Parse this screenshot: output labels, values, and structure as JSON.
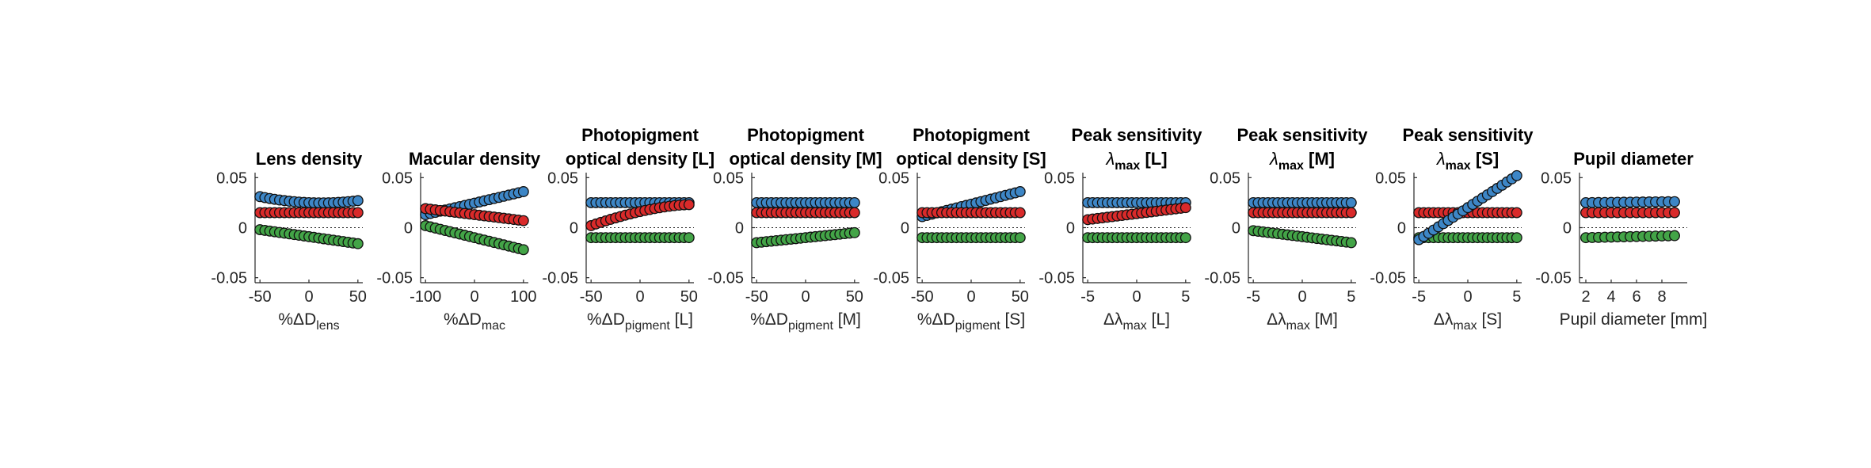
{
  "colors": {
    "blue": "#3d86c6",
    "red": "#d92a2a",
    "green": "#43a447"
  },
  "chart_data": [
    {
      "type": "scatter",
      "title": [
        "Lens density"
      ],
      "xlabel": {
        "pre": "%ΔD",
        "sub": "lens",
        "post": ""
      },
      "xlim": [
        -55,
        55
      ],
      "ylim": [
        -0.055,
        0.055
      ],
      "xticks": [
        -50,
        0,
        50
      ],
      "xticklabels": [
        "-50",
        "0",
        "50"
      ],
      "yticks": [
        -0.05,
        0,
        0.05
      ],
      "yticklabels": [
        "-0.05",
        "0",
        "0.05"
      ],
      "x": [
        -50,
        -45,
        -40,
        -35,
        -30,
        -25,
        -20,
        -15,
        -10,
        -5,
        0,
        5,
        10,
        15,
        20,
        25,
        30,
        35,
        40,
        45,
        50
      ],
      "series": [
        {
          "color": "blue",
          "start": 0.031,
          "end": 0.027,
          "mid": 0.025
        },
        {
          "color": "red",
          "start": 0.015,
          "end": 0.015
        },
        {
          "color": "green",
          "start": -0.002,
          "end": -0.016
        }
      ]
    },
    {
      "type": "scatter",
      "title": [
        "Macular density"
      ],
      "xlabel": {
        "pre": "%ΔD",
        "sub": "mac",
        "post": ""
      },
      "xlim": [
        -110,
        110
      ],
      "ylim": [
        -0.055,
        0.055
      ],
      "xticks": [
        -100,
        0,
        100
      ],
      "xticklabels": [
        "-100",
        "0",
        "100"
      ],
      "yticks": [
        -0.05,
        0,
        0.05
      ],
      "yticklabels": [
        "-0.05",
        "0",
        "0.05"
      ],
      "x": [
        -100,
        -90,
        -80,
        -70,
        -60,
        -50,
        -40,
        -30,
        -20,
        -10,
        0,
        10,
        20,
        30,
        40,
        50,
        60,
        70,
        80,
        90,
        100
      ],
      "series": [
        {
          "color": "blue",
          "start": 0.013,
          "end": 0.036
        },
        {
          "color": "red",
          "start": 0.019,
          "end": 0.007
        },
        {
          "color": "green",
          "start": 0.002,
          "end": -0.022
        }
      ]
    },
    {
      "type": "scatter",
      "title": [
        "Photopigment",
        "optical density [L]"
      ],
      "xlabel": {
        "pre": "%ΔD",
        "sub": "pigment",
        "post": " [L]"
      },
      "xlim": [
        -55,
        55
      ],
      "ylim": [
        -0.055,
        0.055
      ],
      "xticks": [
        -50,
        0,
        50
      ],
      "xticklabels": [
        "-50",
        "0",
        "50"
      ],
      "yticks": [
        -0.05,
        0,
        0.05
      ],
      "yticklabels": [
        "-0.05",
        "0",
        "0.05"
      ],
      "x": [
        -50,
        -45,
        -40,
        -35,
        -30,
        -25,
        -20,
        -15,
        -10,
        -5,
        0,
        5,
        10,
        15,
        20,
        25,
        30,
        35,
        40,
        45,
        50
      ],
      "series": [
        {
          "color": "blue",
          "start": 0.025,
          "end": 0.025
        },
        {
          "color": "red",
          "start": 0.002,
          "end": 0.023,
          "curve": "concave"
        },
        {
          "color": "green",
          "start": -0.01,
          "end": -0.01
        }
      ]
    },
    {
      "type": "scatter",
      "title": [
        "Photopigment",
        "optical density [M]"
      ],
      "xlabel": {
        "pre": "%ΔD",
        "sub": "pigment",
        "post": " [M]"
      },
      "xlim": [
        -55,
        55
      ],
      "ylim": [
        -0.055,
        0.055
      ],
      "xticks": [
        -50,
        0,
        50
      ],
      "xticklabels": [
        "-50",
        "0",
        "50"
      ],
      "yticks": [
        -0.05,
        0,
        0.05
      ],
      "yticklabels": [
        "-0.05",
        "0",
        "0.05"
      ],
      "x": [
        -50,
        -45,
        -40,
        -35,
        -30,
        -25,
        -20,
        -15,
        -10,
        -5,
        0,
        5,
        10,
        15,
        20,
        25,
        30,
        35,
        40,
        45,
        50
      ],
      "series": [
        {
          "color": "blue",
          "start": 0.025,
          "end": 0.025
        },
        {
          "color": "red",
          "start": 0.015,
          "end": 0.015
        },
        {
          "color": "green",
          "start": -0.015,
          "end": -0.005
        }
      ]
    },
    {
      "type": "scatter",
      "title": [
        "Photopigment",
        "optical density [S]"
      ],
      "xlabel": {
        "pre": "%ΔD",
        "sub": "pigment",
        "post": " [S]"
      },
      "xlim": [
        -55,
        55
      ],
      "ylim": [
        -0.055,
        0.055
      ],
      "xticks": [
        -50,
        0,
        50
      ],
      "xticklabels": [
        "-50",
        "0",
        "50"
      ],
      "yticks": [
        -0.05,
        0,
        0.05
      ],
      "yticklabels": [
        "-0.05",
        "0",
        "0.05"
      ],
      "x": [
        -50,
        -45,
        -40,
        -35,
        -30,
        -25,
        -20,
        -15,
        -10,
        -5,
        0,
        5,
        10,
        15,
        20,
        25,
        30,
        35,
        40,
        45,
        50
      ],
      "series": [
        {
          "color": "blue",
          "start": 0.011,
          "end": 0.036
        },
        {
          "color": "red",
          "start": 0.015,
          "end": 0.015
        },
        {
          "color": "green",
          "start": -0.01,
          "end": -0.01
        }
      ]
    },
    {
      "type": "scatter",
      "title": [
        "Peak sensitivity",
        "λmax [L]"
      ],
      "title_sub": "max",
      "xlabel": {
        "pre": "Δλ",
        "sub": "max",
        "post": " [L]"
      },
      "xlim": [
        -5.5,
        5.5
      ],
      "ylim": [
        -0.055,
        0.055
      ],
      "xticks": [
        -5,
        0,
        5
      ],
      "xticklabels": [
        "-5",
        "0",
        "5"
      ],
      "yticks": [
        -0.05,
        0,
        0.05
      ],
      "yticklabels": [
        "-0.05",
        "0",
        "0.05"
      ],
      "x": [
        -5,
        -4.5,
        -4,
        -3.5,
        -3,
        -2.5,
        -2,
        -1.5,
        -1,
        -0.5,
        0,
        0.5,
        1,
        1.5,
        2,
        2.5,
        3,
        3.5,
        4,
        4.5,
        5
      ],
      "series": [
        {
          "color": "blue",
          "start": 0.025,
          "end": 0.025
        },
        {
          "color": "red",
          "start": 0.008,
          "end": 0.02
        },
        {
          "color": "green",
          "start": -0.01,
          "end": -0.01
        }
      ]
    },
    {
      "type": "scatter",
      "title": [
        "Peak sensitivity",
        "λmax [M]"
      ],
      "title_sub": "max",
      "xlabel": {
        "pre": "Δλ",
        "sub": "max",
        "post": " [M]"
      },
      "xlim": [
        -5.5,
        5.5
      ],
      "ylim": [
        -0.055,
        0.055
      ],
      "xticks": [
        -5,
        0,
        5
      ],
      "xticklabels": [
        "-5",
        "0",
        "5"
      ],
      "yticks": [
        -0.05,
        0,
        0.05
      ],
      "yticklabels": [
        "-0.05",
        "0",
        "0.05"
      ],
      "x": [
        -5,
        -4.5,
        -4,
        -3.5,
        -3,
        -2.5,
        -2,
        -1.5,
        -1,
        -0.5,
        0,
        0.5,
        1,
        1.5,
        2,
        2.5,
        3,
        3.5,
        4,
        4.5,
        5
      ],
      "series": [
        {
          "color": "blue",
          "start": 0.025,
          "end": 0.025
        },
        {
          "color": "red",
          "start": 0.015,
          "end": 0.015
        },
        {
          "color": "green",
          "start": -0.003,
          "end": -0.015
        }
      ]
    },
    {
      "type": "scatter",
      "title": [
        "Peak sensitivity",
        "λmax [S]"
      ],
      "title_sub": "max",
      "xlabel": {
        "pre": "Δλ",
        "sub": "max",
        "post": " [S]"
      },
      "xlim": [
        -5.5,
        5.5
      ],
      "ylim": [
        -0.055,
        0.055
      ],
      "xticks": [
        -5,
        0,
        5
      ],
      "xticklabels": [
        "-5",
        "0",
        "5"
      ],
      "yticks": [
        -0.05,
        0,
        0.05
      ],
      "yticklabels": [
        "-0.05",
        "0",
        "0.05"
      ],
      "x": [
        -5,
        -4.5,
        -4,
        -3.5,
        -3,
        -2.5,
        -2,
        -1.5,
        -1,
        -0.5,
        0,
        0.5,
        1,
        1.5,
        2,
        2.5,
        3,
        3.5,
        4,
        4.5,
        5
      ],
      "series": [
        {
          "color": "red",
          "start": 0.015,
          "end": 0.015
        },
        {
          "color": "green",
          "start": -0.01,
          "end": -0.01
        },
        {
          "color": "blue",
          "start": -0.012,
          "end": 0.052
        }
      ]
    },
    {
      "type": "scatter",
      "title": [
        "Pupil diameter"
      ],
      "xlabel": {
        "pre": "Pupil diameter [mm]",
        "sub": "",
        "post": ""
      },
      "xlim": [
        1.5,
        10
      ],
      "ylim": [
        -0.055,
        0.055
      ],
      "xticks": [
        2,
        4,
        6,
        8
      ],
      "xticklabels": [
        "2",
        "4",
        "6",
        "8"
      ],
      "yticks": [
        -0.05,
        0,
        0.05
      ],
      "yticklabels": [
        "-0.05",
        "0",
        "0.05"
      ],
      "x": [
        2,
        2.5,
        3,
        3.5,
        4,
        4.5,
        5,
        5.5,
        6,
        6.5,
        7,
        7.5,
        8,
        8.5,
        9
      ],
      "series": [
        {
          "color": "blue",
          "start": 0.025,
          "end": 0.026
        },
        {
          "color": "red",
          "start": 0.015,
          "end": 0.015
        },
        {
          "color": "green",
          "start": -0.01,
          "end": -0.008
        }
      ]
    }
  ]
}
